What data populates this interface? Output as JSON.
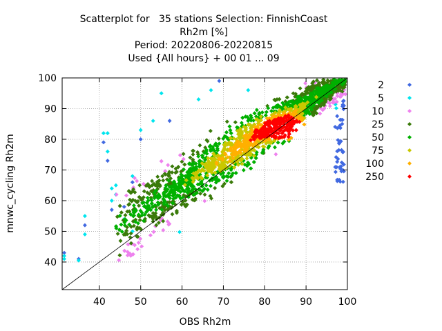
{
  "chart_data": {
    "type": "scatter",
    "title_lines": [
      "Scatterplot for   35 stations Selection: FinnishCoast",
      "Rh2m [%]",
      "Period: 20220806-20220815",
      "Used {All hours} + 00 01 ... 09"
    ],
    "xlabel": "OBS Rh2m",
    "ylabel": "mnwc_cycling Rh2m",
    "xlim": [
      31,
      100
    ],
    "ylim": [
      31,
      100
    ],
    "x_ticks": [
      "40",
      "50",
      "60",
      "70",
      "80",
      "90",
      "100"
    ],
    "y_ticks": [
      "40",
      "50",
      "60",
      "70",
      "80",
      "90",
      "100"
    ],
    "grid": true,
    "legend_position": "right",
    "reference_line": "y = x",
    "series": [
      {
        "name": "2",
        "color": "#4169e1"
      },
      {
        "name": "5",
        "color": "#00e5ee"
      },
      {
        "name": "10",
        "color": "#ee82ee"
      },
      {
        "name": "25",
        "color": "#3a7a0a"
      },
      {
        "name": "50",
        "color": "#00b000"
      },
      {
        "name": "75",
        "color": "#c8c800"
      },
      {
        "name": "100",
        "color": "#ffb000"
      },
      {
        "name": "250",
        "color": "#ff0000"
      }
    ]
  }
}
